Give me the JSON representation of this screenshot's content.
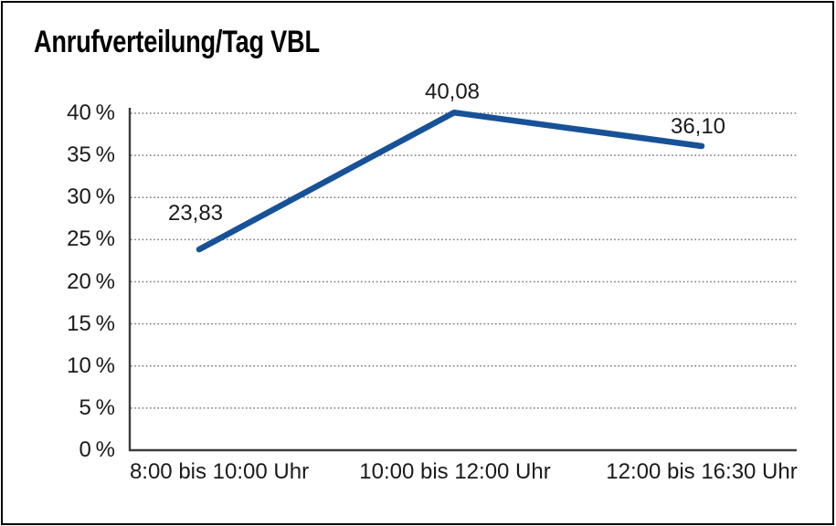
{
  "chart_data": {
    "type": "line",
    "title": "Anrufverteilung/Tag VBL",
    "categories": [
      "8:00 bis 10:00 Uhr",
      "10:00 bis 12:00 Uhr",
      "12:00 bis 16:30 Uhr"
    ],
    "values": [
      23.83,
      40.08,
      36.1
    ],
    "value_labels": [
      "23,83",
      "40,08",
      "36,10"
    ],
    "xlabel": "",
    "ylabel": "",
    "ylim": [
      0,
      40
    ],
    "ytick_step": 5,
    "yticks": [
      {
        "value": 0,
        "label": "0 %"
      },
      {
        "value": 5,
        "label": "5 %"
      },
      {
        "value": 10,
        "label": "10 %"
      },
      {
        "value": 15,
        "label": "15 %"
      },
      {
        "value": 20,
        "label": "20 %"
      },
      {
        "value": 25,
        "label": "25 %"
      },
      {
        "value": 30,
        "label": "30 %"
      },
      {
        "value": 35,
        "label": "35 %"
      },
      {
        "value": 40,
        "label": "40 %"
      }
    ],
    "grid": "horizontal-dotted",
    "legend_position": "none",
    "line_color": "#175298",
    "axis_color": "#3c3c3c",
    "grid_color": "#7a7a7a",
    "text_color": "#1a1a1a",
    "border_color": "#000000"
  }
}
